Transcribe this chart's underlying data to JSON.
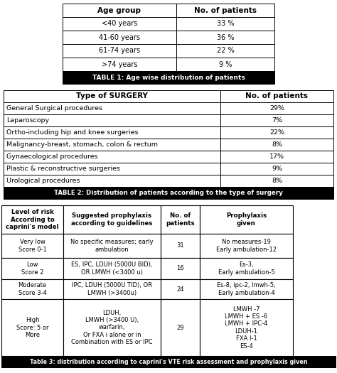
{
  "table1_title": "Age group",
  "table1_col2": "No. of patients",
  "table1_rows": [
    [
      "<40 years",
      "33 %"
    ],
    [
      "41-60 years",
      "36 %"
    ],
    [
      "61-74 years",
      "22 %"
    ],
    [
      ">74 years",
      "9 %"
    ]
  ],
  "table1_caption": "TABLE 1: Age wise distribution of patients",
  "table2_col1": "Type of SURGERY",
  "table2_col2": "No. of patients",
  "table2_rows": [
    [
      "General Surgical procedures",
      "29%"
    ],
    [
      "Laparoscopy",
      "7%"
    ],
    [
      "Ortho-including hip and knee surgeries",
      "22%"
    ],
    [
      "Malignancy-breast, stomach, colon & rectum",
      "8%"
    ],
    [
      "Gynaecological procedures",
      "17%"
    ],
    [
      "Plastic & reconstructive surgeries",
      "9%"
    ],
    [
      "Urological procedures",
      "8%"
    ]
  ],
  "table2_caption": "TABLE 2: Distribution of patients according to the type of surgery",
  "table3_headers": [
    "Level of risk\nAccording to\ncaprini's model",
    "Suggested prophylaxis\naccording to guidelines",
    "No. of\npatients",
    "Prophylaxis\ngiven"
  ],
  "table3_rows": [
    [
      "Very low\nScore 0-1",
      "No specific measures; early\nambulation",
      "31",
      "No measures-19\nEarly ambulation-12"
    ],
    [
      "Low\nScore 2",
      "ES, IPC, LDUH (5000U BID),\nOR LMWH (<3400 u)",
      "16",
      "Es-3,\nEarly ambulation-5"
    ],
    [
      "Moderate\nScore 3-4",
      "IPC, LDUH (5000U TID), OR\nLMWH (>3400u)",
      "24",
      "Es-8, ipc-2, lmwh-5,\nEarly ambulation-4"
    ],
    [
      "High\nScore: 5 or\nMore",
      "LDUH,\nLMWH (>3400 U),\nwarfarin,\nOr FXA i alone or in\nCombination with ES or IPC",
      "29",
      "LMWH -7\nLMWH + ES -6\nLMWH + IPC-4\nLDUH-1\nFXA I-1\nES-4"
    ]
  ],
  "table3_caption": "Table 3: distribution according to caprini's VTE risk assessment and prophylaxis given",
  "bg_color": "#ffffff"
}
